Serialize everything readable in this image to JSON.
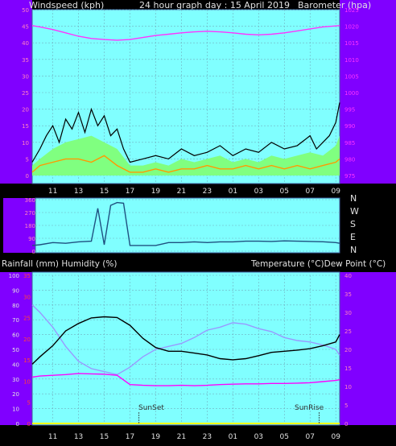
{
  "header": {
    "left_label": "Windspeed (kph)",
    "center_title": "24 hour graph day : 15 April 2019",
    "right_label": "Barometer (hpa)"
  },
  "bottom_header": {
    "left_label": "Rainfall (mm)  Humidity (%)",
    "right_label": "Temperature (°C)Dew Point (°C)"
  },
  "direction_labels": [
    "N",
    "W",
    "S",
    "E",
    "N"
  ],
  "markers": {
    "sunset": "SunSet",
    "sunrise": "SunRise"
  },
  "colors": {
    "plot_bg": "#80ffff",
    "side_panel": "#8000ff",
    "pressure": "#ff33ff",
    "humidity": "#9999ff",
    "temperature": "#000000",
    "dewpoint": "#ff00ff",
    "wind_gust": "#000000",
    "wind_avg": "#80ff80",
    "wind_min": "#ff9900",
    "direction": "#1f5080",
    "rain": "#ffff00"
  },
  "chart_data": [
    {
      "type": "line",
      "name": "wind-barometer",
      "title": "24 hour graph day : 15 April 2019",
      "ylabel": "Windspeed (kph)",
      "y2label": "Barometer (hpa)",
      "x_ticks": [
        "11",
        "13",
        "15",
        "17",
        "19",
        "21",
        "23",
        "01",
        "03",
        "05",
        "07",
        "09"
      ],
      "ylim": [
        0,
        50
      ],
      "y_ticks": [
        "0",
        "5",
        "10",
        "15",
        "20",
        "25",
        "30",
        "35",
        "40",
        "45",
        "50"
      ],
      "y2lim": [
        975,
        1025
      ],
      "y2_ticks": [
        "975",
        "980",
        "985",
        "990",
        "995",
        "1000",
        "1005",
        "1010",
        "1015",
        "1020",
        "1025"
      ],
      "series": [
        {
          "key": "pressure",
          "axis": "right",
          "x": [
            9.4,
            10,
            11,
            12,
            13,
            14,
            15,
            16,
            17,
            18,
            19,
            20,
            21,
            22,
            23,
            24,
            25,
            26,
            27,
            28,
            29,
            30,
            31,
            32,
            33.3
          ],
          "values": [
            1020.2,
            1019.8,
            1019.0,
            1018.0,
            1017.0,
            1016.3,
            1016.0,
            1015.8,
            1016.0,
            1016.6,
            1017.2,
            1017.6,
            1018.0,
            1018.3,
            1018.5,
            1018.3,
            1018.0,
            1017.6,
            1017.4,
            1017.6,
            1018.0,
            1018.6,
            1019.2,
            1019.8,
            1020.2
          ]
        },
        {
          "key": "wind_gust",
          "axis": "left",
          "x": [
            9.4,
            10,
            10.5,
            11,
            11.5,
            12,
            12.5,
            13,
            13.5,
            14,
            14.5,
            15,
            15.5,
            16,
            16.5,
            17,
            18,
            19,
            20,
            21,
            22,
            23,
            24,
            25,
            26,
            27,
            28,
            29,
            30,
            31,
            31.5,
            32,
            32.5,
            33,
            33.3
          ],
          "values": [
            4,
            8,
            12,
            15,
            10,
            17,
            14,
            19,
            13,
            20,
            15,
            18,
            12,
            14,
            8,
            4,
            5,
            6,
            5,
            8,
            6,
            7,
            9,
            6,
            8,
            7,
            10,
            8,
            9,
            12,
            8,
            10,
            12,
            16,
            22
          ]
        },
        {
          "key": "wind_avg",
          "axis": "left",
          "x": [
            9.4,
            10,
            11,
            12,
            13,
            14,
            15,
            16,
            17,
            18,
            19,
            20,
            21,
            22,
            23,
            24,
            25,
            26,
            27,
            28,
            29,
            30,
            31,
            32,
            33,
            33.3
          ],
          "values": [
            3,
            5,
            8,
            10,
            11,
            12,
            10,
            8,
            3,
            3,
            4,
            3,
            5,
            4,
            5,
            6,
            4,
            5,
            4,
            6,
            5,
            6,
            7,
            6,
            9,
            12
          ]
        },
        {
          "key": "wind_min",
          "axis": "left",
          "x": [
            9.4,
            10,
            11,
            12,
            13,
            14,
            15,
            16,
            17,
            18,
            19,
            20,
            21,
            22,
            23,
            24,
            25,
            26,
            27,
            28,
            29,
            30,
            31,
            32,
            33,
            33.3
          ],
          "values": [
            1,
            3,
            4,
            5,
            5,
            4,
            6,
            3,
            1,
            1,
            2,
            1,
            2,
            2,
            3,
            2,
            2,
            3,
            2,
            3,
            2,
            3,
            2,
            3,
            4,
            5
          ]
        }
      ]
    },
    {
      "type": "line",
      "name": "wind-direction",
      "y_ticks": [
        "0",
        "90",
        "180",
        "270",
        "360"
      ],
      "ylim": [
        0,
        360
      ],
      "x": [
        9.4,
        10,
        11,
        12,
        13,
        14,
        14.5,
        15,
        15.5,
        16,
        16.5,
        17,
        18,
        19,
        20,
        21,
        22,
        23,
        24,
        25,
        26,
        27,
        28,
        29,
        30,
        31,
        32,
        33,
        33.3
      ],
      "values": [
        40,
        45,
        60,
        55,
        65,
        70,
        300,
        45,
        320,
        340,
        335,
        40,
        40,
        40,
        60,
        60,
        65,
        60,
        65,
        65,
        70,
        70,
        68,
        72,
        70,
        68,
        66,
        60,
        55
      ]
    },
    {
      "type": "line",
      "name": "temperature-humidity",
      "ylabel": "Rainfall (mm)  Humidity (%)",
      "y2label": "Temperature (°C)Dew Point (°C)",
      "x_ticks": [
        "11",
        "13",
        "15",
        "17",
        "19",
        "21",
        "23",
        "01",
        "03",
        "05",
        "07",
        "09"
      ],
      "ylim": [
        0,
        100
      ],
      "y_ticks": [
        "0",
        "10",
        "20",
        "30",
        "40",
        "50",
        "60",
        "70",
        "80",
        "90",
        "100"
      ],
      "y_rain_ticks": [
        "0",
        "5",
        "10",
        "15",
        "20",
        "25",
        "30",
        "35"
      ],
      "y2lim": [
        0,
        40
      ],
      "y2_ticks": [
        "0",
        "5",
        "10",
        "15",
        "20",
        "25",
        "30",
        "35",
        "40"
      ],
      "sunset_x": 17.7,
      "sunrise_x": 31.7,
      "series": [
        {
          "key": "humidity",
          "axis": "left",
          "x": [
            9.4,
            10,
            11,
            12,
            13,
            14,
            15,
            16,
            17,
            18,
            19,
            20,
            21,
            22,
            23,
            24,
            25,
            26,
            27,
            28,
            29,
            30,
            31,
            32,
            33,
            33.3
          ],
          "values": [
            80,
            75,
            65,
            52,
            42,
            37,
            35,
            33,
            38,
            45,
            50,
            52,
            54,
            58,
            63,
            65,
            68,
            67,
            64,
            62,
            58,
            56,
            55,
            53,
            50,
            46
          ]
        },
        {
          "key": "temperature",
          "axis": "right",
          "x": [
            9.4,
            10,
            11,
            12,
            13,
            14,
            15,
            16,
            17,
            18,
            19,
            20,
            21,
            22,
            23,
            24,
            25,
            26,
            27,
            28,
            29,
            30,
            31,
            32,
            33,
            33.3
          ],
          "values": [
            16,
            18,
            21,
            25,
            27,
            28.5,
            28.8,
            28.6,
            26.5,
            23,
            20.5,
            19.5,
            19.5,
            19,
            18.5,
            17.5,
            17.2,
            17.5,
            18.3,
            19.2,
            19.5,
            19.8,
            20.2,
            21,
            22,
            24
          ]
        },
        {
          "key": "dewpoint",
          "axis": "right",
          "x": [
            9.4,
            10,
            11,
            12,
            13,
            14,
            15,
            16,
            17,
            18,
            19,
            20,
            21,
            22,
            23,
            24,
            25,
            26,
            27,
            28,
            29,
            30,
            31,
            32,
            33,
            33.3
          ],
          "values": [
            12.5,
            12.8,
            13,
            13.2,
            13.5,
            13.4,
            13.3,
            13,
            10.5,
            10.3,
            10.2,
            10.2,
            10.3,
            10.2,
            10.3,
            10.5,
            10.6,
            10.7,
            10.7,
            10.8,
            10.8,
            10.9,
            11,
            11.3,
            11.6,
            11.8
          ]
        },
        {
          "key": "rain",
          "axis": "left",
          "x": [
            9.4,
            33.3
          ],
          "values": [
            0,
            0
          ]
        }
      ]
    }
  ]
}
